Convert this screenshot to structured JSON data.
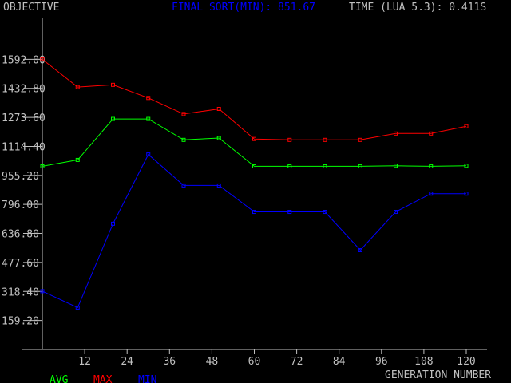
{
  "header": {
    "objective_label": "OBJECTIVE",
    "final_sort_label": "FINAL SORT(MIN): 851.67",
    "time_label": "TIME (LUA 5.3): 0.411S"
  },
  "footer": {
    "xlabel": "GENERATION NUMBER"
  },
  "colors": {
    "background": "#000000",
    "axis": "#c0c0c0",
    "avg": "#00ff00",
    "max": "#ff0000",
    "min": "#0000ff",
    "title_blue": "#0000ff",
    "text": "#c0c0c0"
  },
  "chart_data": {
    "type": "line",
    "title": "",
    "xlabel": "GENERATION NUMBER",
    "ylabel": "OBJECTIVE",
    "xlim": [
      0,
      126
    ],
    "ylim": [
      0,
      1751.2
    ],
    "x_ticks": [
      "12",
      "24",
      "36",
      "48",
      "60",
      "72",
      "84",
      "96",
      "108",
      "120"
    ],
    "x_tick_values": [
      12,
      24,
      36,
      48,
      60,
      72,
      84,
      96,
      108,
      120
    ],
    "y_ticks": [
      "159.20",
      "318.40",
      "477.60",
      "636.80",
      "796.00",
      "955.20",
      "1114.40",
      "1273.60",
      "1432.80",
      "1592.00"
    ],
    "y_tick_values": [
      159.2,
      318.4,
      477.6,
      636.8,
      796.0,
      955.2,
      1114.4,
      1273.6,
      1432.8,
      1592.0
    ],
    "grid": false,
    "legend": "bottom-left",
    "x": [
      0,
      10,
      20,
      30,
      40,
      50,
      60,
      70,
      80,
      90,
      100,
      110,
      120
    ],
    "series": [
      {
        "name": "AVG",
        "color": "#00ff00",
        "values": [
          1005,
          1040,
          1265,
          1265,
          1150,
          1160,
          1005,
          1005,
          1005,
          1005,
          1008,
          1005,
          1008
        ]
      },
      {
        "name": "MAX",
        "color": "#ff0000",
        "values": [
          1592,
          1440,
          1452,
          1380,
          1292,
          1320,
          1155,
          1150,
          1150,
          1150,
          1185,
          1185,
          1225
        ]
      },
      {
        "name": "MIN",
        "color": "#0000ff",
        "values": [
          320,
          230,
          690,
          1070,
          900,
          900,
          755,
          755,
          755,
          545,
          755,
          855,
          855
        ]
      }
    ]
  }
}
